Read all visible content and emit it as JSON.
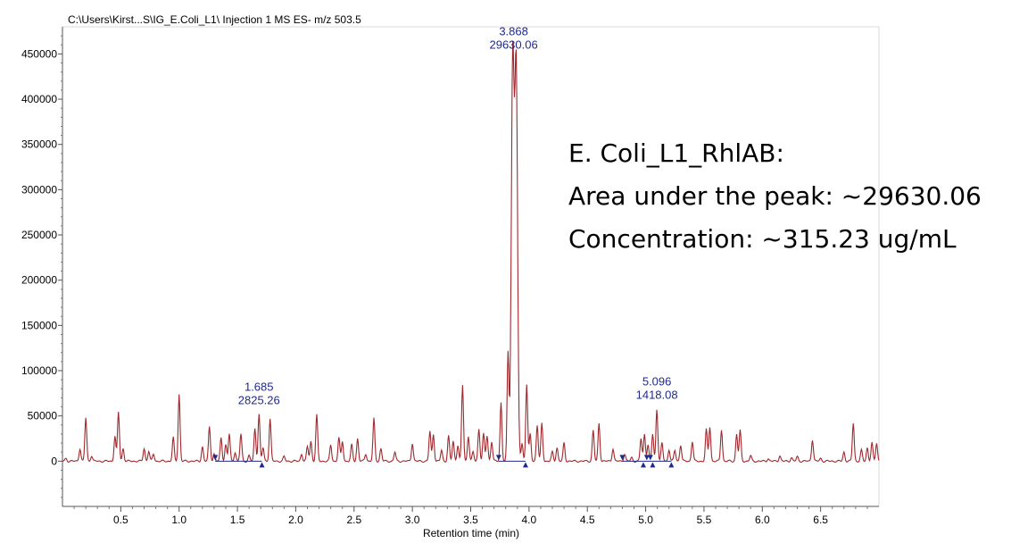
{
  "chart_data": {
    "type": "line",
    "title": "C:\\Users\\Kirst...S\\IG_E.Coli_L1\\ Injection 1 MS ES-  m/z 503.5",
    "xlabel": "Retention time (min)",
    "ylabel": "",
    "xlim": [
      0.0,
      7.0
    ],
    "ylim": [
      -50000,
      480000
    ],
    "xticks": [
      "0.5",
      "1.0",
      "1.5",
      "2.0",
      "2.5",
      "3.0",
      "3.5",
      "4.0",
      "4.5",
      "5.0",
      "5.5",
      "6.0",
      "6.5"
    ],
    "xtick_values": [
      0.5,
      1.0,
      1.5,
      2.0,
      2.5,
      3.0,
      3.5,
      4.0,
      4.5,
      5.0,
      5.5,
      6.0,
      6.5
    ],
    "yticks": [
      "0",
      "50000",
      "100000",
      "150000",
      "200000",
      "250000",
      "300000",
      "350000",
      "400000",
      "450000"
    ],
    "ytick_values": [
      0,
      50000,
      100000,
      150000,
      200000,
      250000,
      300000,
      350000,
      400000,
      450000
    ],
    "series_color": "#a0282d",
    "label_color": "#1f2a8c",
    "peaks": [
      [
        0.03,
        3000
      ],
      [
        0.15,
        14000
      ],
      [
        0.2,
        48000
      ],
      [
        0.25,
        6000
      ],
      [
        0.45,
        28000
      ],
      [
        0.48,
        54000
      ],
      [
        0.52,
        14000
      ],
      [
        0.7,
        14000
      ],
      [
        0.74,
        11000
      ],
      [
        0.78,
        8000
      ],
      [
        0.95,
        26000
      ],
      [
        1.0,
        74000
      ],
      [
        1.2,
        16000
      ],
      [
        1.26,
        38000
      ],
      [
        1.3,
        8000
      ],
      [
        1.36,
        26000
      ],
      [
        1.4,
        18000
      ],
      [
        1.43,
        30000
      ],
      [
        1.48,
        10000
      ],
      [
        1.53,
        30000
      ],
      [
        1.6,
        6000
      ],
      [
        1.65,
        36000
      ],
      [
        1.685,
        52000
      ],
      [
        1.72,
        15000
      ],
      [
        1.78,
        47000
      ],
      [
        1.9,
        5000
      ],
      [
        2.05,
        8000
      ],
      [
        2.1,
        16000
      ],
      [
        2.13,
        22000
      ],
      [
        2.18,
        51000
      ],
      [
        2.3,
        18000
      ],
      [
        2.37,
        26000
      ],
      [
        2.4,
        22000
      ],
      [
        2.48,
        18000
      ],
      [
        2.53,
        25000
      ],
      [
        2.6,
        8000
      ],
      [
        2.67,
        47000
      ],
      [
        2.73,
        14000
      ],
      [
        2.85,
        10000
      ],
      [
        3.0,
        20000
      ],
      [
        3.15,
        33000
      ],
      [
        3.18,
        30000
      ],
      [
        3.25,
        12000
      ],
      [
        3.31,
        28000
      ],
      [
        3.35,
        22000
      ],
      [
        3.39,
        18000
      ],
      [
        3.43,
        84000
      ],
      [
        3.48,
        28000
      ],
      [
        3.52,
        10000
      ],
      [
        3.57,
        36000
      ],
      [
        3.61,
        30000
      ],
      [
        3.64,
        28000
      ],
      [
        3.68,
        22000
      ],
      [
        3.76,
        65000
      ],
      [
        3.82,
        120000
      ],
      [
        3.86,
        445000
      ],
      [
        3.89,
        435000
      ],
      [
        3.94,
        20000
      ],
      [
        3.98,
        85000
      ],
      [
        4.01,
        30000
      ],
      [
        4.07,
        40000
      ],
      [
        4.11,
        42000
      ],
      [
        4.2,
        10000
      ],
      [
        4.24,
        15000
      ],
      [
        4.3,
        20000
      ],
      [
        4.55,
        34000
      ],
      [
        4.6,
        42000
      ],
      [
        4.72,
        14000
      ],
      [
        4.82,
        8000
      ],
      [
        4.88,
        4000
      ],
      [
        4.96,
        25000
      ],
      [
        4.99,
        30000
      ],
      [
        5.02,
        18000
      ],
      [
        5.06,
        30000
      ],
      [
        5.096,
        58000
      ],
      [
        5.14,
        20000
      ],
      [
        5.2,
        13000
      ],
      [
        5.25,
        12000
      ],
      [
        5.3,
        18000
      ],
      [
        5.4,
        22000
      ],
      [
        5.52,
        35000
      ],
      [
        5.55,
        38000
      ],
      [
        5.65,
        35000
      ],
      [
        5.78,
        30000
      ],
      [
        5.81,
        34000
      ],
      [
        5.9,
        6000
      ],
      [
        6.05,
        3000
      ],
      [
        6.15,
        6000
      ],
      [
        6.25,
        4000
      ],
      [
        6.3,
        5000
      ],
      [
        6.43,
        24000
      ],
      [
        6.5,
        3000
      ],
      [
        6.7,
        10000
      ],
      [
        6.78,
        42000
      ],
      [
        6.85,
        12000
      ],
      [
        6.9,
        15000
      ],
      [
        6.94,
        20000
      ],
      [
        6.98,
        20000
      ]
    ],
    "annotations": [
      {
        "rt": "3.868",
        "area": "29630.06",
        "x": 3.868,
        "y": 445000
      },
      {
        "rt": "1.685",
        "area": "2825.26",
        "x": 1.685,
        "y": 52000
      },
      {
        "rt": "5.096",
        "area": "1418.08",
        "x": 5.096,
        "y": 58000
      }
    ],
    "integration_markers": [
      {
        "x": 1.31,
        "dir": "down"
      },
      {
        "x": 1.71,
        "dir": "up"
      },
      {
        "x": 3.74,
        "dir": "down"
      },
      {
        "x": 3.97,
        "dir": "up"
      },
      {
        "x": 4.8,
        "dir": "down"
      },
      {
        "x": 4.98,
        "dir": "up"
      },
      {
        "x": 5.01,
        "dir": "down"
      },
      {
        "x": 5.04,
        "dir": "down"
      },
      {
        "x": 5.06,
        "dir": "up"
      },
      {
        "x": 5.22,
        "dir": "up"
      }
    ],
    "baselines": [
      [
        1.31,
        1.71
      ],
      [
        3.74,
        3.97
      ],
      [
        4.8,
        5.22
      ]
    ]
  },
  "note": {
    "line1": "E. Coli_L1_RhlAB:",
    "line2": "Area under the peak: ~29630.06",
    "line3": "Concentration: ~315.23 ug/mL"
  }
}
